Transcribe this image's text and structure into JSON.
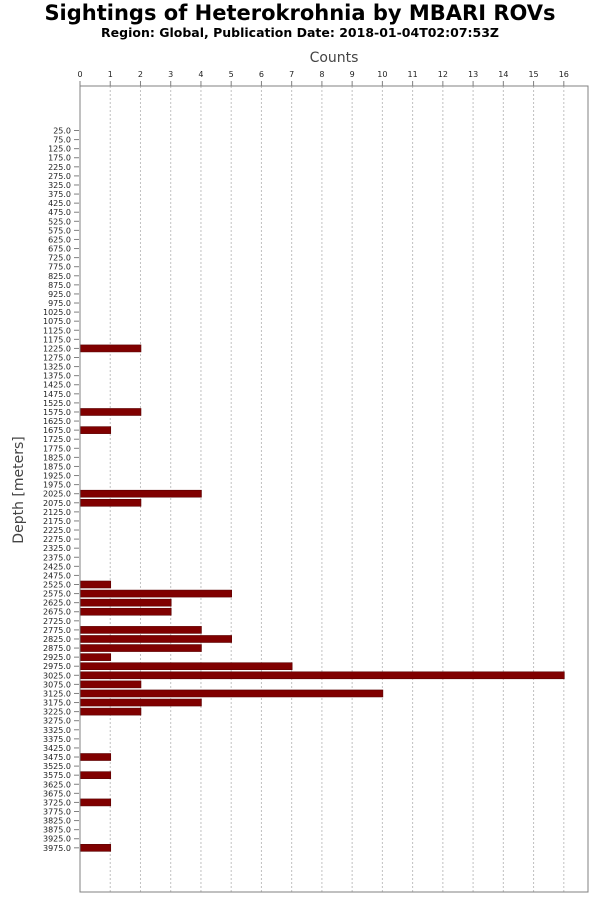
{
  "chart_data": {
    "type": "bar",
    "orientation": "horizontal",
    "title": "Sightings of Heterokrohnia by MBARI ROVs",
    "subtitle": "Region: Global, Publication Date: 2018-01-04T02:07:53Z",
    "xlabel": "Counts",
    "ylabel": "Depth [meters]",
    "xlim": [
      0,
      16.8
    ],
    "xticks": [
      "0",
      "1",
      "2",
      "3",
      "4",
      "5",
      "6",
      "7",
      "8",
      "9",
      "10",
      "11",
      "12",
      "13",
      "14",
      "15",
      "16"
    ],
    "x_axis_position": "top",
    "grid": "vertical dashed",
    "bar_color": "#800000",
    "categories": [
      "25.0",
      "75.0",
      "125.0",
      "175.0",
      "225.0",
      "275.0",
      "325.0",
      "375.0",
      "425.0",
      "475.0",
      "525.0",
      "575.0",
      "625.0",
      "675.0",
      "725.0",
      "775.0",
      "825.0",
      "875.0",
      "925.0",
      "975.0",
      "1025.0",
      "1075.0",
      "1125.0",
      "1175.0",
      "1225.0",
      "1275.0",
      "1325.0",
      "1375.0",
      "1425.0",
      "1475.0",
      "1525.0",
      "1575.0",
      "1625.0",
      "1675.0",
      "1725.0",
      "1775.0",
      "1825.0",
      "1875.0",
      "1925.0",
      "1975.0",
      "2025.0",
      "2075.0",
      "2125.0",
      "2175.0",
      "2225.0",
      "2275.0",
      "2325.0",
      "2375.0",
      "2425.0",
      "2475.0",
      "2525.0",
      "2575.0",
      "2625.0",
      "2675.0",
      "2725.0",
      "2775.0",
      "2825.0",
      "2875.0",
      "2925.0",
      "2975.0",
      "3025.0",
      "3075.0",
      "3125.0",
      "3175.0",
      "3225.0",
      "3275.0",
      "3325.0",
      "3375.0",
      "3425.0",
      "3475.0",
      "3525.0",
      "3575.0",
      "3625.0",
      "3675.0",
      "3725.0",
      "3775.0",
      "3825.0",
      "3875.0",
      "3925.0",
      "3975.0"
    ],
    "values": [
      0,
      0,
      0,
      0,
      0,
      0,
      0,
      0,
      0,
      0,
      0,
      0,
      0,
      0,
      0,
      0,
      0,
      0,
      0,
      0,
      0,
      0,
      0,
      0,
      2,
      0,
      0,
      0,
      0,
      0,
      0,
      2,
      0,
      1,
      0,
      0,
      0,
      0,
      0,
      0,
      4,
      2,
      0,
      0,
      0,
      0,
      0,
      0,
      0,
      0,
      1,
      5,
      3,
      3,
      0,
      4,
      5,
      4,
      1,
      7,
      16,
      2,
      10,
      4,
      2,
      0,
      0,
      0,
      0,
      1,
      0,
      1,
      0,
      0,
      1,
      0,
      0,
      0,
      0,
      1
    ]
  }
}
